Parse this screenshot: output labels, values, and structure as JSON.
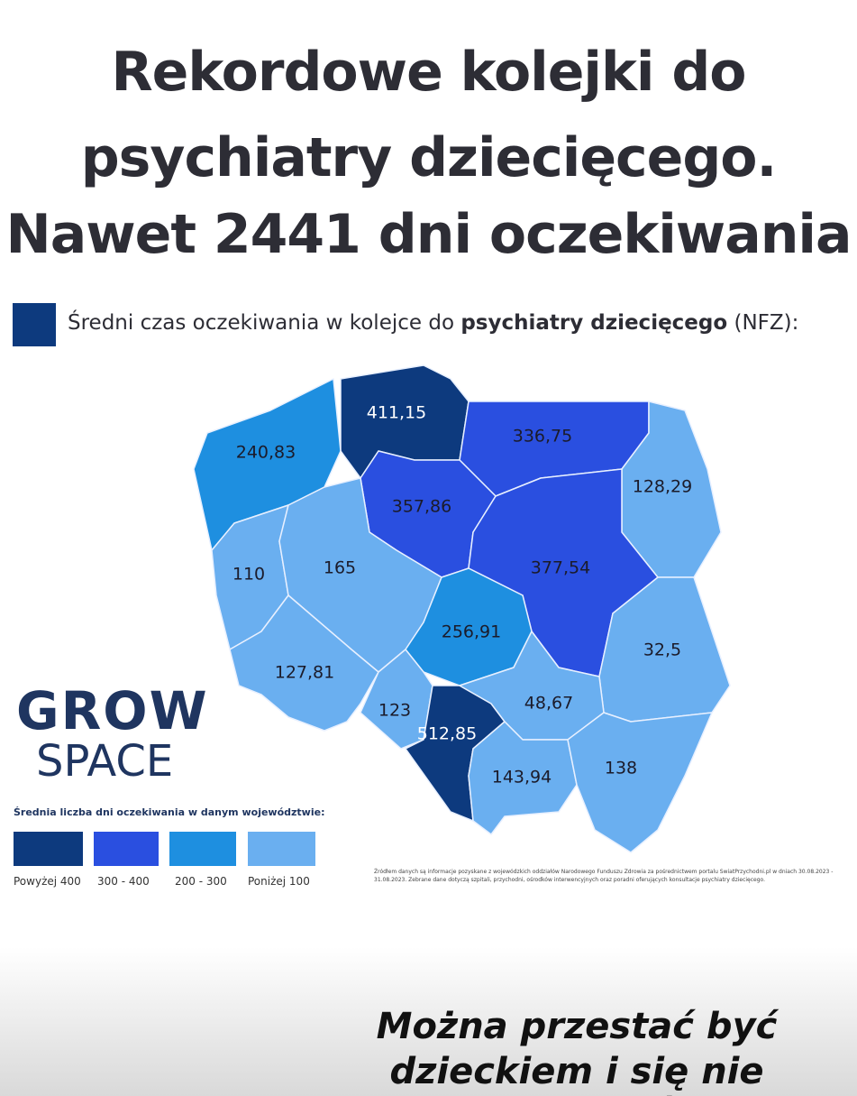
{
  "header": {
    "title_lines": [
      "Rekordowe kolejki do",
      "psychiatry dziecięcego.",
      "Nawet 2441 dni oczekiwania"
    ]
  },
  "subtitle": {
    "prefix": "Średni czas oczekiwania w kolejce do ",
    "bold": "psychiatry dziecięcego",
    "suffix": " (NFZ):"
  },
  "regions": [
    {
      "label": "411,15"
    },
    {
      "label": "240,83"
    },
    {
      "label": "336,75"
    },
    {
      "label": "128,29"
    },
    {
      "label": "357,86"
    },
    {
      "label": "377,54"
    },
    {
      "label": "110"
    },
    {
      "label": "165"
    },
    {
      "label": "256,91"
    },
    {
      "label": "32,5"
    },
    {
      "label": "127,81"
    },
    {
      "label": "123"
    },
    {
      "label": "512,85"
    },
    {
      "label": "48,67"
    },
    {
      "label": "143,94"
    },
    {
      "label": "138"
    }
  ],
  "logo": {
    "line1": "GROW",
    "line2": "SPACE"
  },
  "legend": {
    "title": "Średnia liczba dni oczekiwania w danym województwie:",
    "items": [
      "Powyżej 400",
      "300 - 400",
      "200 - 300",
      "Poniżej 100"
    ]
  },
  "source": "Źródłem danych są informacje pozyskane z wojewódzkich oddziałów Narodowego Funduszu Zdrowia za pośrednictwem portalu SwiatPrzychodni.pl w dniach 30.08.2023 - 31.08.2023. Zebrane dane dotyczą szpitali, przychodni, ośrodków interwencyjnych oraz poradni oferujących konsultacje psychiatry dziecięcego.",
  "caption_lines": [
    "Można przestać być",
    "dzieckiem i się nie doczekać"
  ]
}
